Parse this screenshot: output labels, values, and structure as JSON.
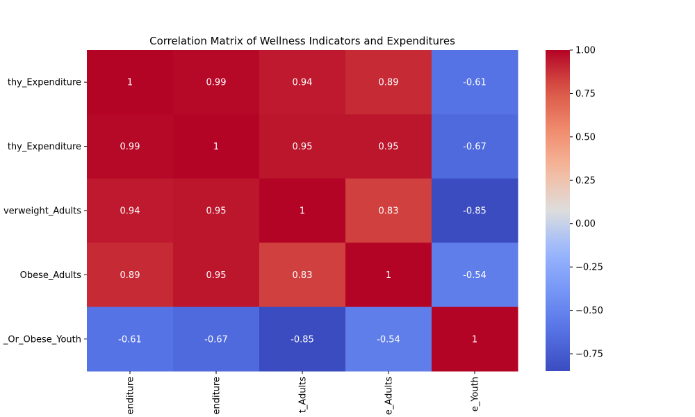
{
  "chart_data": {
    "type": "heatmap",
    "title": "Correlation Matrix of Wellness Indicators and Expenditures",
    "row_labels": [
      "thy_Expenditure",
      "thy_Expenditure",
      "verweight_Adults",
      "Obese_Adults",
      "_Or_Obese_Youth"
    ],
    "col_labels": [
      "enditure",
      "enditure",
      "t_Adults",
      "e_Adults",
      "e_Youth"
    ],
    "values": [
      [
        1,
        0.99,
        0.94,
        0.89,
        -0.61
      ],
      [
        0.99,
        1,
        0.95,
        0.95,
        -0.67
      ],
      [
        0.94,
        0.95,
        1,
        0.83,
        -0.85
      ],
      [
        0.89,
        0.95,
        0.83,
        1,
        -0.54
      ],
      [
        -0.61,
        -0.67,
        -0.85,
        -0.54,
        1
      ]
    ],
    "colorbar": {
      "range": [
        -0.85,
        1.0
      ],
      "ticks": [
        1.0,
        0.75,
        0.5,
        0.25,
        0.0,
        -0.25,
        -0.5,
        -0.75
      ],
      "tick_labels": [
        "1.00",
        "0.75",
        "0.50",
        "0.25",
        "0.00",
        "−0.25",
        "−0.50",
        "−0.75"
      ],
      "colormap": "coolwarm"
    },
    "annotations": true
  }
}
